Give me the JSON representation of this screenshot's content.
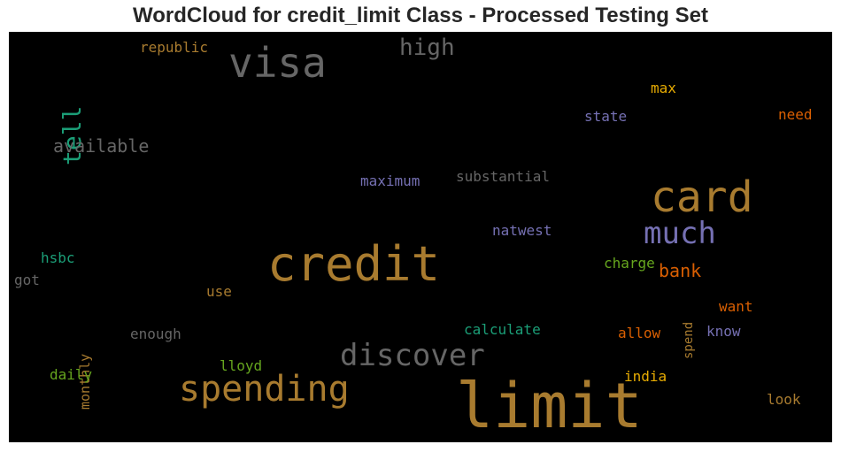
{
  "chart_data": {
    "type": "wordcloud",
    "title": "WordCloud for credit_limit Class - Processed Testing Set",
    "background": "#000000",
    "words": [
      {
        "text": "limit",
        "color": "#a87b2f",
        "orientation": "horizontal"
      },
      {
        "text": "credit",
        "color": "#a87b2f",
        "orientation": "horizontal"
      },
      {
        "text": "card",
        "color": "#a87b2f",
        "orientation": "horizontal"
      },
      {
        "text": "visa",
        "color": "#666666",
        "orientation": "horizontal"
      },
      {
        "text": "spending",
        "color": "#a87b2f",
        "orientation": "horizontal"
      },
      {
        "text": "much",
        "color": "#7570b3",
        "orientation": "horizontal"
      },
      {
        "text": "discover",
        "color": "#666666",
        "orientation": "horizontal"
      },
      {
        "text": "tell",
        "color": "#1b9e77",
        "orientation": "vertical"
      },
      {
        "text": "high",
        "color": "#666666",
        "orientation": "horizontal"
      },
      {
        "text": "available",
        "color": "#666666",
        "orientation": "horizontal"
      },
      {
        "text": "bank",
        "color": "#d95f02",
        "orientation": "horizontal"
      },
      {
        "text": "republic",
        "color": "#a87b2f",
        "orientation": "horizontal"
      },
      {
        "text": "max",
        "color": "#e6ab02",
        "orientation": "horizontal"
      },
      {
        "text": "state",
        "color": "#7570b3",
        "orientation": "horizontal"
      },
      {
        "text": "need",
        "color": "#d95f02",
        "orientation": "horizontal"
      },
      {
        "text": "maximum",
        "color": "#7570b3",
        "orientation": "horizontal"
      },
      {
        "text": "substantial",
        "color": "#666666",
        "orientation": "horizontal"
      },
      {
        "text": "natwest",
        "color": "#7570b3",
        "orientation": "horizontal"
      },
      {
        "text": "hsbc",
        "color": "#1b9e77",
        "orientation": "horizontal"
      },
      {
        "text": "got",
        "color": "#666666",
        "orientation": "horizontal"
      },
      {
        "text": "use",
        "color": "#a87b2f",
        "orientation": "horizontal"
      },
      {
        "text": "monthly",
        "color": "#a87b2f",
        "orientation": "vertical"
      },
      {
        "text": "enough",
        "color": "#666666",
        "orientation": "horizontal"
      },
      {
        "text": "charge",
        "color": "#66a61e",
        "orientation": "horizontal"
      },
      {
        "text": "spend",
        "color": "#a87b2f",
        "orientation": "vertical"
      },
      {
        "text": "want",
        "color": "#d95f02",
        "orientation": "horizontal"
      },
      {
        "text": "calculate",
        "color": "#1b9e77",
        "orientation": "horizontal"
      },
      {
        "text": "allow",
        "color": "#d95f02",
        "orientation": "horizontal"
      },
      {
        "text": "know",
        "color": "#7570b3",
        "orientation": "horizontal"
      },
      {
        "text": "daily",
        "color": "#66a61e",
        "orientation": "horizontal"
      },
      {
        "text": "lloyd",
        "color": "#66a61e",
        "orientation": "horizontal"
      },
      {
        "text": "india",
        "color": "#e6ab02",
        "orientation": "horizontal"
      },
      {
        "text": "look",
        "color": "#a87b2f",
        "orientation": "horizontal"
      }
    ]
  }
}
